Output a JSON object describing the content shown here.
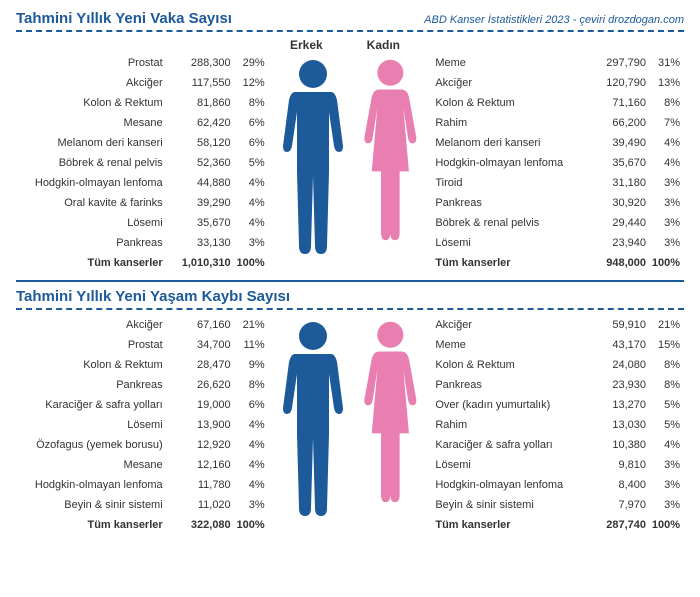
{
  "source": "ABD Kanser İstatistikleri 2023 - çeviri drozdogan.com",
  "labels": {
    "male": "Erkek",
    "female": "Kadın"
  },
  "colors": {
    "male": "#1d5a9a",
    "female": "#e97fb0",
    "accent": "#1d5a9a",
    "text": "#333333",
    "bg": "#ffffff"
  },
  "sections": [
    {
      "title": "Tahmini Yıllık Yeni Vaka Sayısı",
      "showHeaderLabels": true,
      "male": [
        {
          "name": "Prostat",
          "num": "288,300",
          "pct": "29%"
        },
        {
          "name": "Akciğer",
          "num": "117,550",
          "pct": "12%"
        },
        {
          "name": "Kolon & Rektum",
          "num": "81,860",
          "pct": "8%"
        },
        {
          "name": "Mesane",
          "num": "62,420",
          "pct": "6%"
        },
        {
          "name": "Melanom deri kanseri",
          "num": "58,120",
          "pct": "6%"
        },
        {
          "name": "Böbrek & renal pelvis",
          "num": "52,360",
          "pct": "5%"
        },
        {
          "name": "Hodgkin-olmayan lenfoma",
          "num": "44,880",
          "pct": "4%"
        },
        {
          "name": "Oral kavite & farinks",
          "num": "39,290",
          "pct": "4%"
        },
        {
          "name": "Lösemi",
          "num": "35,670",
          "pct": "4%"
        },
        {
          "name": "Pankreas",
          "num": "33,130",
          "pct": "3%"
        }
      ],
      "maleTotal": {
        "name": "Tüm kanserler",
        "num": "1,010,310",
        "pct": "100%"
      },
      "female": [
        {
          "name": "Meme",
          "num": "297,790",
          "pct": "31%"
        },
        {
          "name": "Akciğer",
          "num": "120,790",
          "pct": "13%"
        },
        {
          "name": "Kolon & Rektum",
          "num": "71,160",
          "pct": "8%"
        },
        {
          "name": "Rahim",
          "num": "66,200",
          "pct": "7%"
        },
        {
          "name": "Melanom deri kanseri",
          "num": "39,490",
          "pct": "4%"
        },
        {
          "name": "Hodgkin-olmayan lenfoma",
          "num": "35,670",
          "pct": "4%"
        },
        {
          "name": "Tiroid",
          "num": "31,180",
          "pct": "3%"
        },
        {
          "name": "Pankreas",
          "num": "30,920",
          "pct": "3%"
        },
        {
          "name": "Böbrek & renal pelvis",
          "num": "29,440",
          "pct": "3%"
        },
        {
          "name": "Lösemi",
          "num": "23,940",
          "pct": "3%"
        }
      ],
      "femaleTotal": {
        "name": "Tüm kanserler",
        "num": "948,000",
        "pct": "100%"
      }
    },
    {
      "title": "Tahmini Yıllık Yeni Yaşam Kaybı Sayısı",
      "showHeaderLabels": false,
      "male": [
        {
          "name": "Akciğer",
          "num": "67,160",
          "pct": "21%"
        },
        {
          "name": "Prostat",
          "num": "34,700",
          "pct": "11%"
        },
        {
          "name": "Kolon & Rektum",
          "num": "28,470",
          "pct": "9%"
        },
        {
          "name": "Pankreas",
          "num": "26,620",
          "pct": "8%"
        },
        {
          "name": "Karaciğer & safra yolları",
          "num": "19,000",
          "pct": "6%"
        },
        {
          "name": "Lösemi",
          "num": "13,900",
          "pct": "4%"
        },
        {
          "name": "Özofagus (yemek borusu)",
          "num": "12,920",
          "pct": "4%"
        },
        {
          "name": "Mesane",
          "num": "12,160",
          "pct": "4%"
        },
        {
          "name": "Hodgkin-olmayan lenfoma",
          "num": "11,780",
          "pct": "4%"
        },
        {
          "name": "Beyin & sinir sistemi",
          "num": "11,020",
          "pct": "3%"
        }
      ],
      "maleTotal": {
        "name": "Tüm kanserler",
        "num": "322,080",
        "pct": "100%"
      },
      "female": [
        {
          "name": "Akciğer",
          "num": "59,910",
          "pct": "21%"
        },
        {
          "name": "Meme",
          "num": "43,170",
          "pct": "15%"
        },
        {
          "name": "Kolon & Rektum",
          "num": "24,080",
          "pct": "8%"
        },
        {
          "name": "Pankreas",
          "num": "23,930",
          "pct": "8%"
        },
        {
          "name": "Over (kadın yumurtalık)",
          "num": "13,270",
          "pct": "5%"
        },
        {
          "name": "Rahim",
          "num": "13,030",
          "pct": "5%"
        },
        {
          "name": "Karaciğer & safra yolları",
          "num": "10,380",
          "pct": "4%"
        },
        {
          "name": "Lösemi",
          "num": "9,810",
          "pct": "3%"
        },
        {
          "name": "Hodgkin-olmayan lenfoma",
          "num": "8,400",
          "pct": "3%"
        },
        {
          "name": "Beyin & sinir sistemi",
          "num": "7,970",
          "pct": "3%"
        }
      ],
      "femaleTotal": {
        "name": "Tüm kanserler",
        "num": "287,740",
        "pct": "100%"
      }
    }
  ]
}
